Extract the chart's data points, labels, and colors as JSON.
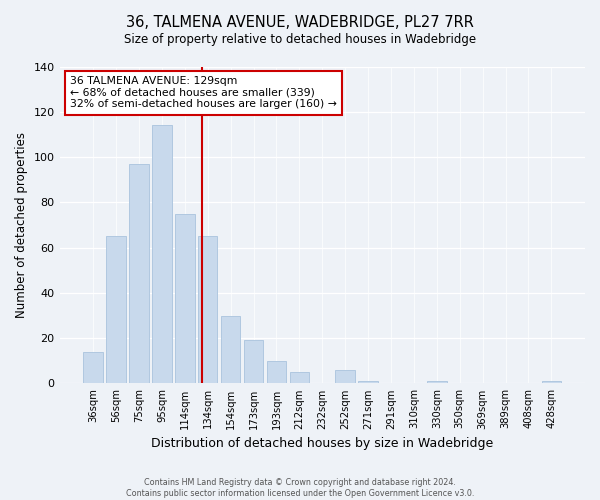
{
  "title": "36, TALMENA AVENUE, WADEBRIDGE, PL27 7RR",
  "subtitle": "Size of property relative to detached houses in Wadebridge",
  "xlabel": "Distribution of detached houses by size in Wadebridge",
  "ylabel": "Number of detached properties",
  "bar_labels": [
    "36sqm",
    "56sqm",
    "75sqm",
    "95sqm",
    "114sqm",
    "134sqm",
    "154sqm",
    "173sqm",
    "193sqm",
    "212sqm",
    "232sqm",
    "252sqm",
    "271sqm",
    "291sqm",
    "310sqm",
    "330sqm",
    "350sqm",
    "369sqm",
    "389sqm",
    "408sqm",
    "428sqm"
  ],
  "bar_heights": [
    14,
    65,
    97,
    114,
    75,
    65,
    30,
    19,
    10,
    5,
    0,
    6,
    1,
    0,
    0,
    1,
    0,
    0,
    0,
    0,
    1
  ],
  "bar_color": "#c8d9ec",
  "bar_edge_color": "#b0c8e0",
  "annotation_label": "36 TALMENA AVENUE: 129sqm",
  "annotation_line1": "← 68% of detached houses are smaller (339)",
  "annotation_line2": "32% of semi-detached houses are larger (160) →",
  "vline_color": "#cc0000",
  "vline_x": 4.75,
  "ylim": [
    0,
    140
  ],
  "yticks": [
    0,
    20,
    40,
    60,
    80,
    100,
    120,
    140
  ],
  "annotation_box_facecolor": "#ffffff",
  "annotation_box_edgecolor": "#cc0000",
  "footer_line1": "Contains HM Land Registry data © Crown copyright and database right 2024.",
  "footer_line2": "Contains public sector information licensed under the Open Government Licence v3.0.",
  "background_color": "#eef2f7"
}
